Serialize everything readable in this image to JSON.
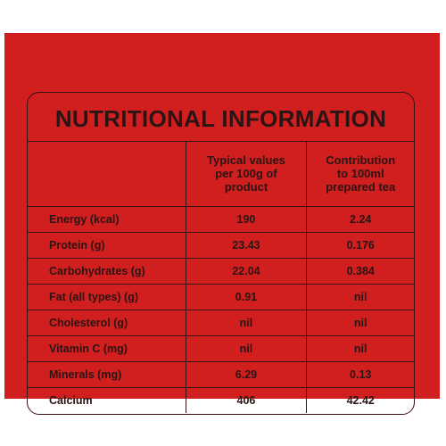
{
  "title": "NUTRITIONAL INFORMATION",
  "columns": {
    "typical": [
      "Typical values",
      "per 100g of",
      "product"
    ],
    "contribution": [
      "Contribution",
      "to 100ml",
      "prepared tea"
    ]
  },
  "rows": [
    {
      "nutrient": "Energy (kcal)",
      "typical": "190",
      "contribution": "2.24"
    },
    {
      "nutrient": "Protein (g)",
      "typical": "23.43",
      "contribution": "0.176"
    },
    {
      "nutrient": "Carbohydrates (g)",
      "typical": "22.04",
      "contribution": "0.384"
    },
    {
      "nutrient": "Fat (all types) (g)",
      "typical": "0.91",
      "contribution": "nil"
    },
    {
      "nutrient": "Cholesterol (g)",
      "typical": "nil",
      "contribution": "nil"
    },
    {
      "nutrient": "Vitamin C (mg)",
      "typical": "nil",
      "contribution": "nil"
    },
    {
      "nutrient": "Minerals (mg)",
      "typical": "6.29",
      "contribution": "0.13"
    },
    {
      "nutrient": "Calcium",
      "typical": "406",
      "contribution": "42.42"
    }
  ],
  "colors": {
    "background": "#d11f1f",
    "text": "#2a1414",
    "border": "#3a1010"
  }
}
